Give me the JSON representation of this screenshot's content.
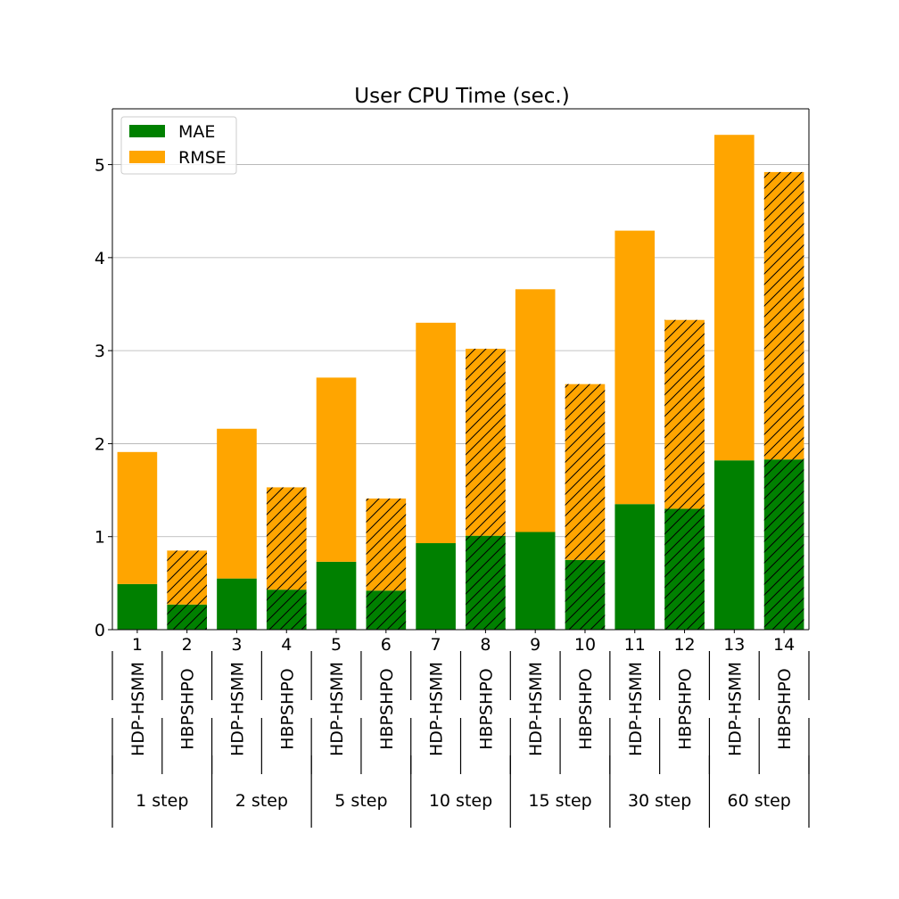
{
  "chart_data": {
    "type": "bar",
    "stacked": true,
    "title": "User CPU Time (sec.)",
    "xlabel": "",
    "ylabel": "",
    "ylim": [
      0,
      5.6
    ],
    "yticks": [
      0,
      1,
      2,
      3,
      4,
      5
    ],
    "grid": "horizontal",
    "legend_position": "top-left",
    "categories": [
      "1",
      "2",
      "3",
      "4",
      "5",
      "6",
      "7",
      "8",
      "9",
      "10",
      "11",
      "12",
      "13",
      "14"
    ],
    "methods": [
      "HDP-HSMM",
      "HBPSHPO",
      "HDP-HSMM",
      "HBPSHPO",
      "HDP-HSMM",
      "HBPSHPO",
      "HDP-HSMM",
      "HBPSHPO",
      "HDP-HSMM",
      "HBPSHPO",
      "HDP-HSMM",
      "HBPSHPO",
      "HDP-HSMM",
      "HBPSHPO"
    ],
    "hatched": [
      false,
      true,
      false,
      true,
      false,
      true,
      false,
      true,
      false,
      true,
      false,
      true,
      false,
      true
    ],
    "groups": [
      "1 step",
      "2 step",
      "5 step",
      "10 step",
      "15 step",
      "30 step",
      "60 step"
    ],
    "series": [
      {
        "name": "MAE",
        "color": "#008000",
        "values": [
          0.49,
          0.27,
          0.55,
          0.43,
          0.73,
          0.42,
          0.93,
          1.01,
          1.05,
          0.75,
          1.35,
          1.3,
          1.82,
          1.83
        ]
      },
      {
        "name": "RMSE",
        "color": "#FFA500",
        "values": [
          1.42,
          0.58,
          1.61,
          1.1,
          1.98,
          0.99,
          2.37,
          2.01,
          2.61,
          1.89,
          2.94,
          2.03,
          3.5,
          3.09
        ]
      }
    ]
  }
}
